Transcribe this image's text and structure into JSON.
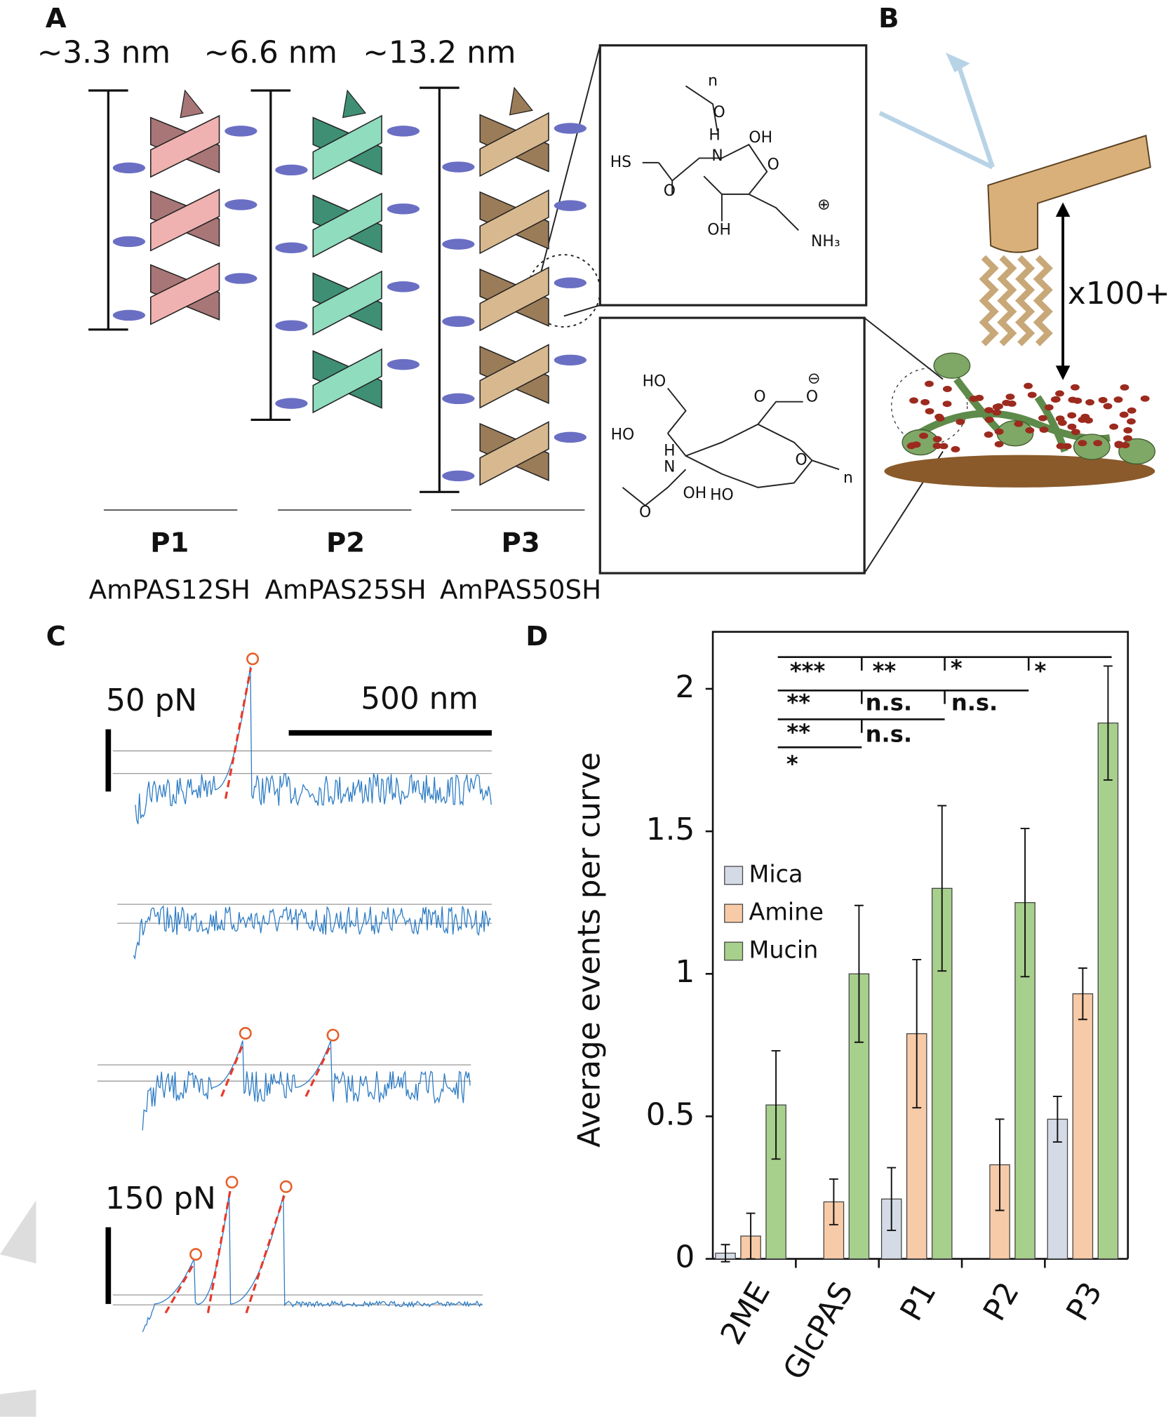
{
  "panel_labels": [
    "A",
    "B",
    "C",
    "D"
  ],
  "panel_a": {
    "lengths": [
      "~3.3 nm",
      "~6.6 nm",
      "~13.2 nm"
    ],
    "names": [
      "P1",
      "P2",
      "P3"
    ],
    "compounds": [
      "AmPAS12SH",
      "AmPAS25SH",
      "AmPAS50SH"
    ],
    "chem_upper": [
      "n",
      "O",
      "HS",
      "H",
      "N",
      "OH",
      "O",
      "O",
      "OH",
      "NH₃",
      "⊕"
    ],
    "chem_lower": [
      "HO",
      "O",
      "O",
      "⊖",
      "HO",
      "H",
      "N",
      "O",
      "OH",
      "HO",
      "n",
      "O"
    ]
  },
  "panel_b": {
    "label": "x100+"
  },
  "panel_c": {
    "scales": [
      "50 pN",
      "500 nm",
      "150 pN"
    ]
  },
  "chart_data": {
    "type": "bar",
    "ylabel": "Average events per curve",
    "categories": [
      "2ME",
      "GlcPAS",
      "P1",
      "P2",
      "P3"
    ],
    "series": [
      {
        "name": "Mica",
        "color": "#d5dbe6",
        "values": [
          0.02,
          null,
          0.21,
          null,
          0.49
        ],
        "errors": [
          0.03,
          null,
          0.11,
          null,
          0.08
        ]
      },
      {
        "name": "Amine",
        "color": "#f8cba8",
        "values": [
          0.08,
          0.2,
          0.79,
          0.33,
          0.93
        ],
        "errors": [
          0.08,
          0.08,
          0.26,
          0.16,
          0.09
        ]
      },
      {
        "name": "Mucin",
        "color": "#a8d08d",
        "values": [
          0.54,
          1.0,
          1.3,
          1.25,
          1.88
        ],
        "errors": [
          0.19,
          0.24,
          0.29,
          0.26,
          0.2
        ]
      }
    ],
    "ylim": [
      0,
      2.2
    ],
    "yticks": [
      0,
      0.5,
      1,
      1.5,
      2
    ],
    "legend": "middle-left",
    "annotations": [
      "***",
      "**",
      "*",
      "*",
      "**",
      "n.s.",
      "n.s.",
      "**",
      "n.s.",
      "*"
    ]
  }
}
